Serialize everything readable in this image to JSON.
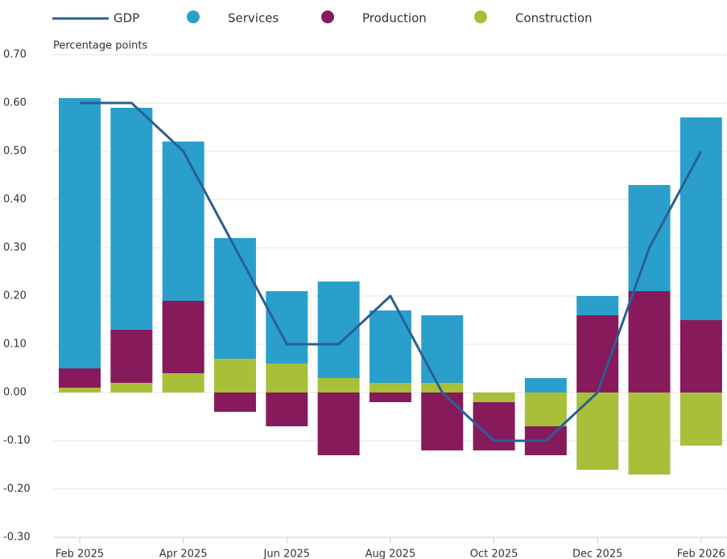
{
  "chart_data": {
    "type": "bar",
    "stacked": true,
    "ylabel": "Percentage points",
    "categories": [
      "Feb 2025",
      null,
      "Apr 2025",
      null,
      "Jun 2025",
      null,
      "Aug 2025",
      null,
      "Oct 2025",
      null,
      "Dec 2025",
      null,
      "Feb 2026"
    ],
    "series": [
      {
        "name": "GDP",
        "type": "line",
        "color": "#2a5f95",
        "values": [
          0.6,
          0.6,
          0.5,
          0.3,
          0.1,
          0.1,
          0.2,
          0,
          -0.1,
          -0.1,
          0,
          0.3,
          0.5
        ]
      },
      {
        "name": "Services",
        "color": "#2a9fcc",
        "values": [
          0.56,
          0.46,
          0.33,
          0.25,
          0.15,
          0.2,
          0.15,
          0.14,
          0,
          0.03,
          0.04,
          0.22,
          0.42
        ]
      },
      {
        "name": "Production",
        "color": "#871a5b",
        "values": [
          0.04,
          0.11,
          0.15,
          -0.04,
          -0.07,
          -0.13,
          -0.02,
          -0.12,
          -0.1,
          -0.06,
          0.16,
          0.21,
          0.15
        ]
      },
      {
        "name": "Construction",
        "color": "#a8bf3a",
        "values": [
          0.01,
          0.02,
          0.04,
          0.07,
          0.06,
          0.03,
          0.02,
          0.02,
          -0.02,
          -0.07,
          -0.16,
          -0.17,
          -0.11
        ]
      }
    ],
    "ylim": [
      -0.3,
      0.7
    ],
    "yticks": [
      {
        "value": -0.3,
        "label": "-0.30"
      },
      {
        "value": -0.2,
        "label": "-0.20"
      },
      {
        "value": -0.1,
        "label": "-0.10"
      },
      {
        "value": 0,
        "label": "0.00"
      },
      {
        "value": 0.1,
        "label": "0.10"
      },
      {
        "value": 0.2,
        "label": "0.20"
      },
      {
        "value": 0.3,
        "label": "0.30"
      },
      {
        "value": 0.4,
        "label": "0.40"
      },
      {
        "value": 0.5,
        "label": "0.50"
      },
      {
        "value": 0.6,
        "label": "0.60"
      },
      {
        "value": 0.7,
        "label": "0.70"
      }
    ],
    "grid": true
  }
}
